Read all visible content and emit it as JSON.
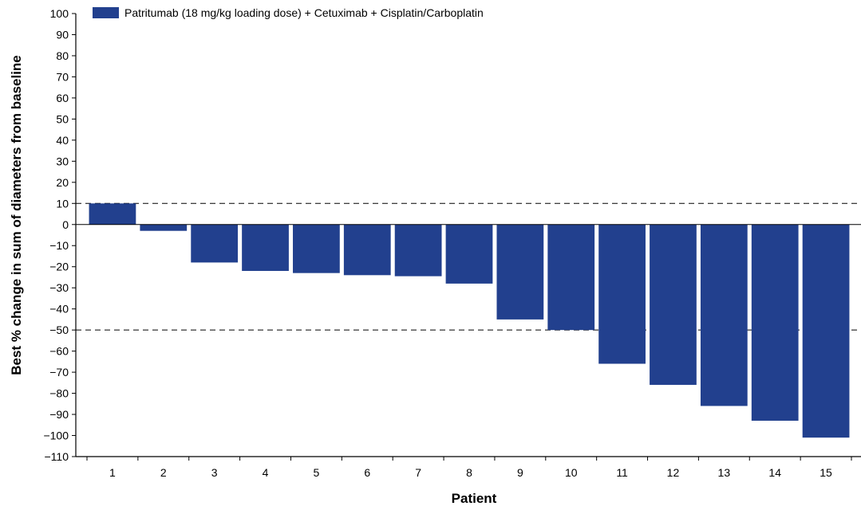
{
  "chart_data": {
    "type": "bar",
    "categories": [
      "1",
      "2",
      "3",
      "4",
      "5",
      "6",
      "7",
      "8",
      "9",
      "10",
      "11",
      "12",
      "13",
      "14",
      "15"
    ],
    "series": [
      {
        "name": "Patritumab (18 mg/kg loading dose) + Cetuximab + Cisplatin/Carboplatin",
        "color": "#22408e",
        "values": [
          10,
          -3,
          -18,
          -22,
          -23,
          -24,
          -24.5,
          -28,
          -45,
          -50,
          -66,
          -76,
          -86,
          -93,
          -101
        ]
      }
    ],
    "xlabel": "Patient",
    "ylabel": "Best % change in sum of diameters from baseline",
    "ylim": [
      -110,
      100
    ],
    "yticks": [
      100,
      90,
      80,
      70,
      60,
      50,
      40,
      30,
      20,
      10,
      0,
      -10,
      -20,
      -30,
      -40,
      -50,
      -60,
      -70,
      -80,
      -90,
      -100,
      -110
    ],
    "ytick_labels": [
      "100",
      "90",
      "80",
      "70",
      "60",
      "50",
      "40",
      "30",
      "20",
      "10",
      "0",
      "−10",
      "−20",
      "−30",
      "−40",
      "−50",
      "−60",
      "−70",
      "−80",
      "−90",
      "−100",
      "−110"
    ],
    "reference_lines": [
      10,
      -50
    ],
    "legend_position": "top-left",
    "grid": false
  }
}
